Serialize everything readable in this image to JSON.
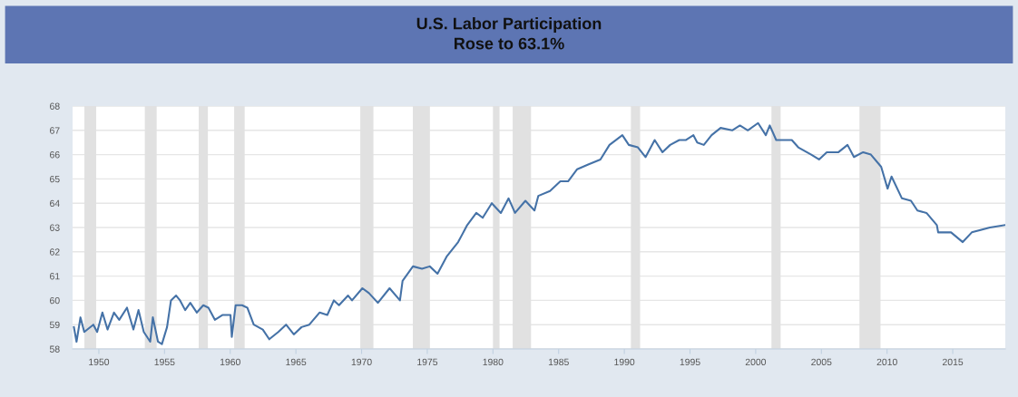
{
  "chart_data": {
    "type": "line",
    "title": "U.S. Labor Participation\nRose to 63.1%",
    "xlim": [
      1948,
      2019
    ],
    "xticks": [
      1950,
      1955,
      1960,
      1965,
      1970,
      1975,
      1980,
      1985,
      1990,
      1995,
      2000,
      2005,
      2010,
      2015
    ],
    "ylim": [
      58,
      68
    ],
    "yticks": [
      58,
      59,
      60,
      61,
      62,
      63,
      64,
      65,
      66,
      67,
      68
    ],
    "grid": "y",
    "bands": [
      {
        "axis": "x",
        "from": 1948.9,
        "to": 1949.8,
        "color": "#e1e1e1"
      },
      {
        "axis": "x",
        "from": 1953.5,
        "to": 1954.4,
        "color": "#e1e1e1"
      },
      {
        "axis": "x",
        "from": 1957.6,
        "to": 1958.3,
        "color": "#e1e1e1"
      },
      {
        "axis": "x",
        "from": 1960.3,
        "to": 1961.1,
        "color": "#e1e1e1"
      },
      {
        "axis": "x",
        "from": 1969.9,
        "to": 1970.9,
        "color": "#e1e1e1"
      },
      {
        "axis": "x",
        "from": 1973.9,
        "to": 1975.2,
        "color": "#e1e1e1"
      },
      {
        "axis": "x",
        "from": 1980.0,
        "to": 1980.5,
        "color": "#e1e1e1"
      },
      {
        "axis": "x",
        "from": 1981.5,
        "to": 1982.9,
        "color": "#e1e1e1"
      },
      {
        "axis": "x",
        "from": 1990.5,
        "to": 1991.2,
        "color": "#e1e1e1"
      },
      {
        "axis": "x",
        "from": 2001.2,
        "to": 2001.9,
        "color": "#e1e1e1"
      },
      {
        "axis": "x",
        "from": 2007.9,
        "to": 2009.5,
        "color": "#e1e1e1"
      }
    ],
    "series": [
      {
        "color": "#4572a7",
        "x": [
          1948.1,
          1948.3,
          1948.6,
          1948.89,
          1949.58,
          1949.87,
          1950.27,
          1950.66,
          1951.15,
          1951.55,
          1952.14,
          1952.63,
          1953.02,
          1953.42,
          1953.91,
          1954.11,
          1954.5,
          1954.8,
          1955.19,
          1955.49,
          1955.88,
          1956.18,
          1956.57,
          1956.96,
          1957.46,
          1957.95,
          1958.34,
          1958.83,
          1959.43,
          1960.02,
          1960.12,
          1960.41,
          1960.9,
          1961.3,
          1961.79,
          1962.48,
          1962.97,
          1963.66,
          1964.25,
          1964.84,
          1965.43,
          1966.02,
          1966.8,
          1967.39,
          1967.89,
          1968.28,
          1968.97,
          1969.27,
          1970.06,
          1970.56,
          1971.24,
          1972.13,
          1972.92,
          1973.12,
          1973.91,
          1974.6,
          1975.19,
          1975.78,
          1976.47,
          1977.35,
          1978.04,
          1978.73,
          1979.22,
          1979.91,
          1980.6,
          1981.19,
          1981.68,
          1982.47,
          1983.16,
          1983.45,
          1984.34,
          1985.13,
          1985.72,
          1986.41,
          1987.29,
          1988.18,
          1988.87,
          1989.85,
          1990.34,
          1991.03,
          1991.62,
          1992.31,
          1992.9,
          1993.49,
          1994.18,
          1994.67,
          1995.26,
          1995.55,
          1996.05,
          1996.64,
          1997.33,
          1998.21,
          1998.8,
          1999.4,
          2000.18,
          2000.77,
          2001.07,
          2001.56,
          2002.75,
          2003.24,
          2004.23,
          2004.82,
          2005.41,
          2006.3,
          2006.99,
          2007.48,
          2008.18,
          2008.77,
          2009.55,
          2010.04,
          2010.34,
          2011.13,
          2011.82,
          2012.31,
          2013.0,
          2013.79,
          2013.89,
          2014.87,
          2015.76,
          2016.45,
          2017.83,
          2018.97
        ],
        "values": [
          58.9,
          58.3,
          59.3,
          58.7,
          59.0,
          58.7,
          59.5,
          58.8,
          59.5,
          59.2,
          59.7,
          58.8,
          59.6,
          58.7,
          58.3,
          59.3,
          58.3,
          58.2,
          58.9,
          60.0,
          60.2,
          60.0,
          59.6,
          59.9,
          59.5,
          59.8,
          59.7,
          59.2,
          59.4,
          59.4,
          58.5,
          59.8,
          59.8,
          59.7,
          59.0,
          58.8,
          58.4,
          58.7,
          59.0,
          58.6,
          58.9,
          59.0,
          59.5,
          59.4,
          60.0,
          59.8,
          60.2,
          60.0,
          60.5,
          60.3,
          59.9,
          60.5,
          60.0,
          60.8,
          61.4,
          61.3,
          61.4,
          61.1,
          61.8,
          62.4,
          63.1,
          63.6,
          63.4,
          64.0,
          63.6,
          64.2,
          63.6,
          64.1,
          63.7,
          64.3,
          64.5,
          64.9,
          64.9,
          65.4,
          65.6,
          65.8,
          66.4,
          66.8,
          66.4,
          66.3,
          65.9,
          66.6,
          66.1,
          66.4,
          66.6,
          66.6,
          66.8,
          66.5,
          66.4,
          66.8,
          67.1,
          67.0,
          67.2,
          67.0,
          67.3,
          66.8,
          67.2,
          66.6,
          66.6,
          66.3,
          66.0,
          65.8,
          66.1,
          66.1,
          66.4,
          65.9,
          66.1,
          66.0,
          65.5,
          64.6,
          65.1,
          64.2,
          64.1,
          63.7,
          63.6,
          63.1,
          62.8,
          62.8,
          62.4,
          62.8,
          63.0,
          63.1
        ]
      }
    ]
  }
}
